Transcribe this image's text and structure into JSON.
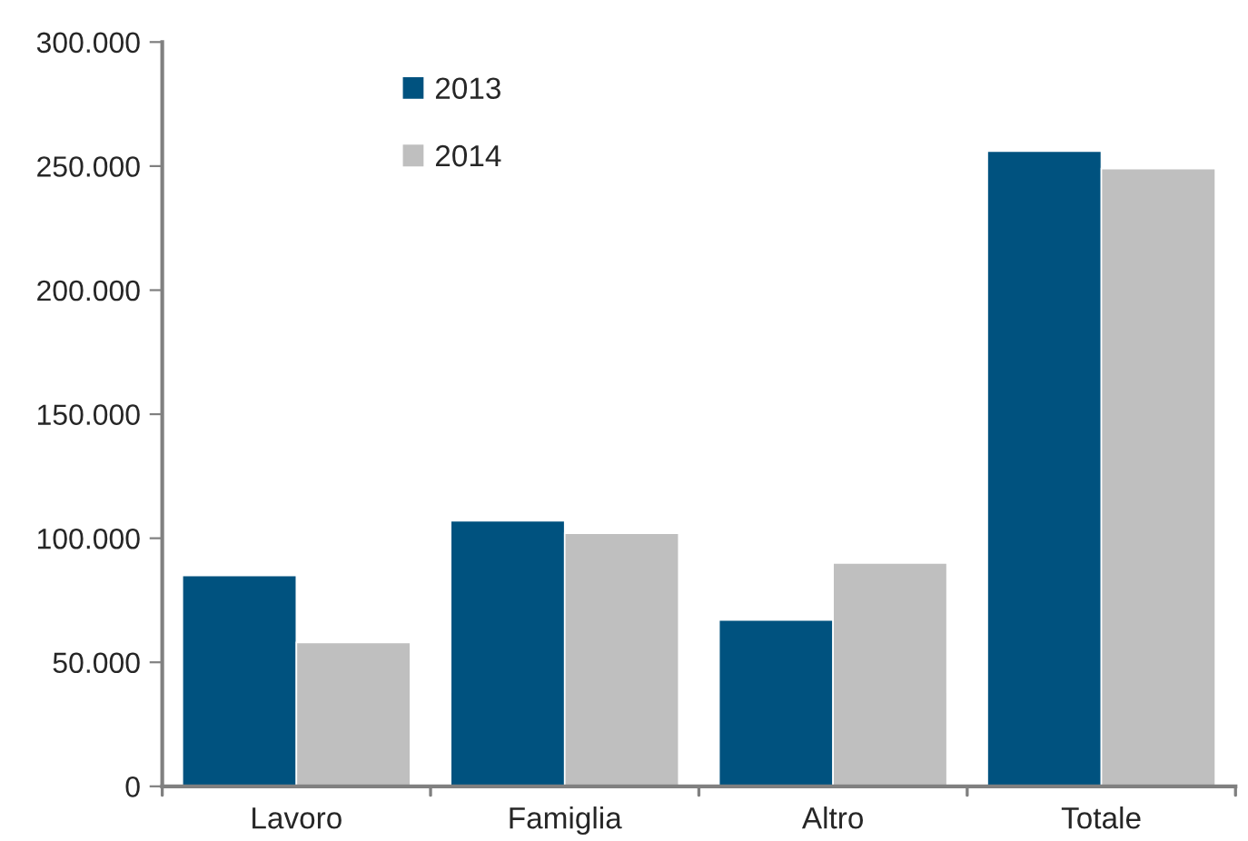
{
  "chart_data": {
    "type": "bar",
    "categories": [
      "Lavoro",
      "Famiglia",
      "Altro",
      "Totale"
    ],
    "series": [
      {
        "name": "2013",
        "color": "#00527f",
        "values": [
          85000,
          107000,
          67000,
          256000
        ]
      },
      {
        "name": "2014",
        "color": "#bfbfbf",
        "values": [
          58000,
          102000,
          90000,
          249000
        ]
      }
    ],
    "ylim": [
      0,
      300000
    ],
    "yticks": [
      {
        "value": 0,
        "label": "0"
      },
      {
        "value": 50000,
        "label": "50.000"
      },
      {
        "value": 100000,
        "label": "100.000"
      },
      {
        "value": 150000,
        "label": "150.000"
      },
      {
        "value": 200000,
        "label": "200.000"
      },
      {
        "value": 250000,
        "label": "250.000"
      },
      {
        "value": 300000,
        "label": "300.000"
      }
    ],
    "grid": false,
    "legend": "top left"
  }
}
